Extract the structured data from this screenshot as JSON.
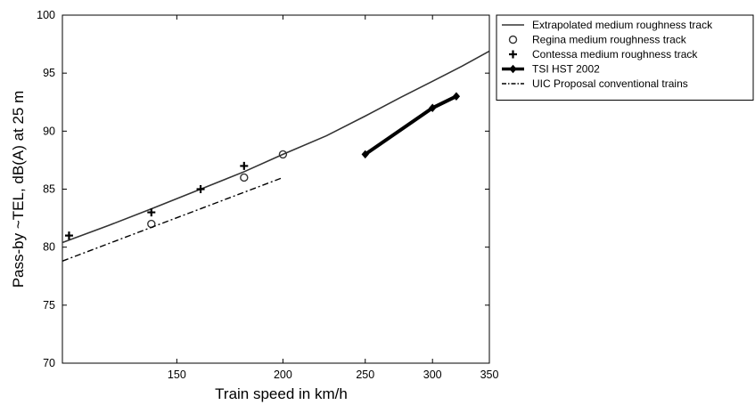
{
  "chart_data": {
    "type": "line",
    "xlabel": "Train speed in km/h",
    "ylabel": "Pass-by ~TEL, dB(A) at 25 m",
    "xlim": [
      110,
      350
    ],
    "ylim": [
      70,
      100
    ],
    "x_scale": "log",
    "grid": false,
    "legend_position": "outside-right",
    "xticks": [
      {
        "value": 150,
        "label": "150"
      },
      {
        "value": 200,
        "label": "200"
      },
      {
        "value": 250,
        "label": "250"
      },
      {
        "value": 300,
        "label": "300"
      },
      {
        "value": 350,
        "label": "350"
      }
    ],
    "yticks": [
      {
        "value": 70,
        "label": "70"
      },
      {
        "value": 75,
        "label": "75"
      },
      {
        "value": 80,
        "label": "80"
      },
      {
        "value": 85,
        "label": "85"
      },
      {
        "value": 90,
        "label": "90"
      },
      {
        "value": 95,
        "label": "95"
      },
      {
        "value": 100,
        "label": "100"
      }
    ],
    "series": [
      {
        "name": "Extrapolated medium roughness track",
        "style": "solid-thin",
        "color": "#333333",
        "x": [
          110,
          125,
          140,
          160,
          180,
          200,
          225,
          250,
          275,
          300,
          325,
          350
        ],
        "y": [
          80.4,
          81.9,
          83.3,
          85.0,
          86.5,
          88.0,
          89.6,
          91.3,
          92.9,
          94.3,
          95.6,
          96.9
        ]
      },
      {
        "name": "Regina medium roughness track",
        "style": "open-circle",
        "color": "#333333",
        "x": [
          140,
          180,
          200
        ],
        "y": [
          82,
          86,
          88
        ]
      },
      {
        "name": "Contessa medium roughness track",
        "style": "plus-marker",
        "color": "#000000",
        "x": [
          112,
          140,
          160,
          180
        ],
        "y": [
          81,
          83,
          85,
          87
        ]
      },
      {
        "name": "TSI HST 2002",
        "style": "thick-diamond",
        "color": "#000000",
        "x": [
          250,
          300,
          320
        ],
        "y": [
          88,
          92,
          93
        ]
      },
      {
        "name": "UIC Proposal conventional trains",
        "style": "dash-dot",
        "color": "#000000",
        "x": [
          110,
          200
        ],
        "y": [
          78.8,
          86.0
        ]
      }
    ]
  }
}
